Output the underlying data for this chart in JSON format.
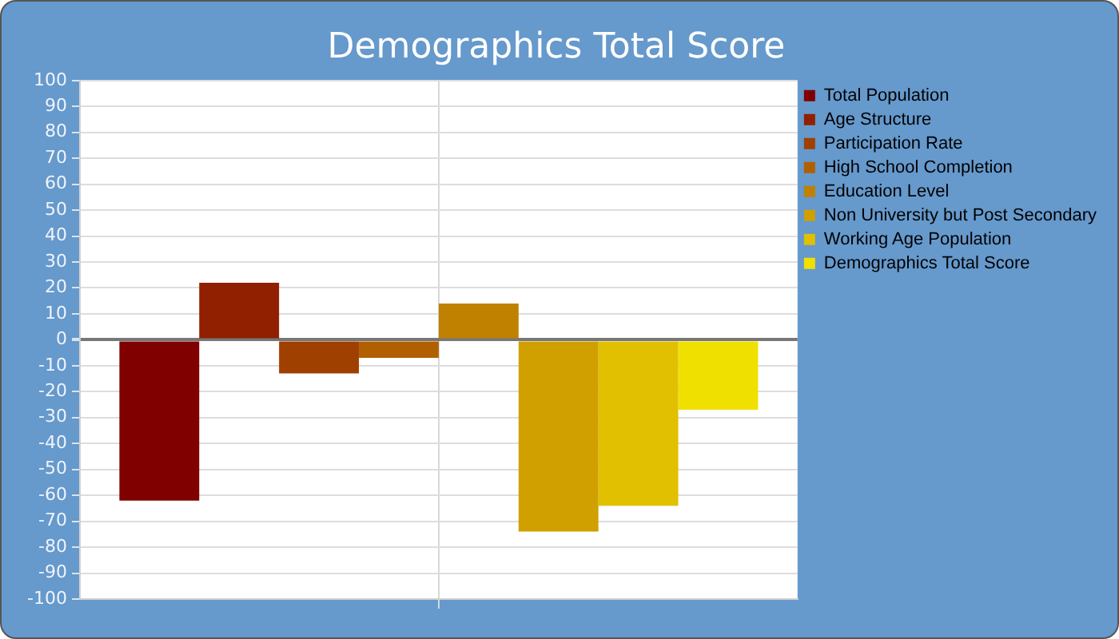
{
  "chart_data": {
    "type": "bar",
    "title": "Demographics Total Score",
    "categories": [
      null
    ],
    "series": [
      {
        "name": "Total Population",
        "color": "#800000",
        "values": [
          -62
        ]
      },
      {
        "name": "Age Structure",
        "color": "#902000",
        "values": [
          22
        ]
      },
      {
        "name": "Participation Rate",
        "color": "#a04000",
        "values": [
          -13
        ]
      },
      {
        "name": "High School Completion",
        "color": "#b06000",
        "values": [
          -7
        ]
      },
      {
        "name": "Education Level",
        "color": "#c08000",
        "values": [
          14
        ]
      },
      {
        "name": "Non University but Post Secondary",
        "color": "#d0a000",
        "values": [
          -74
        ]
      },
      {
        "name": "Working Age Population",
        "color": "#e0c000",
        "values": [
          -64
        ]
      },
      {
        "name": "Demographics Total Score",
        "color": "#f0e000",
        "values": [
          -27
        ]
      }
    ],
    "ylim": [
      -100,
      100
    ],
    "yticks": [
      -100,
      -90,
      -80,
      -70,
      -60,
      -50,
      -40,
      -30,
      -20,
      -10,
      0,
      10,
      20,
      30,
      40,
      50,
      60,
      70,
      80,
      90,
      100
    ],
    "grid": true,
    "legend": "top right"
  }
}
